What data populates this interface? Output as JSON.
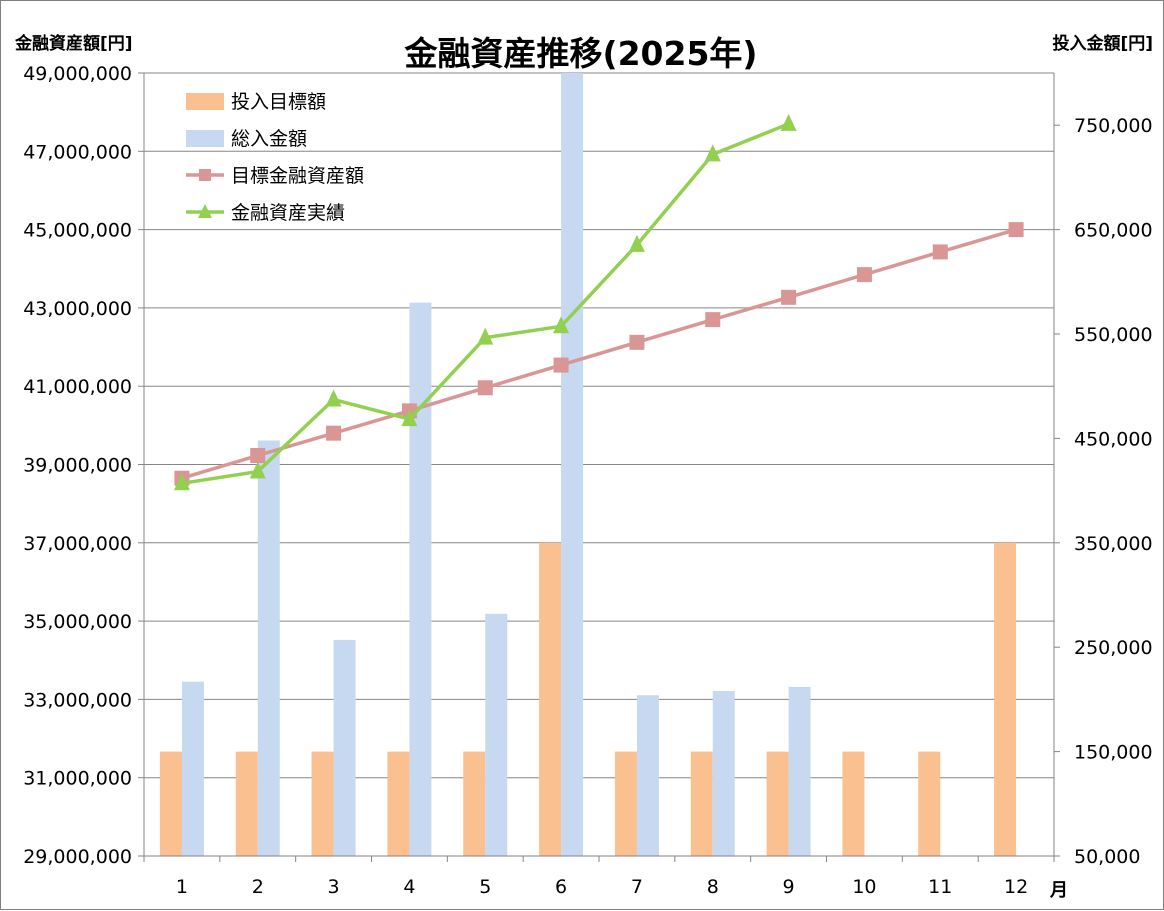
{
  "chart_data": {
    "type": "bar",
    "title": "金融資産推移(2025年)",
    "y_left_label": "金融資産額[円]",
    "y_right_label": "投入金額[円]",
    "x_unit_label": "月",
    "categories": [
      "1",
      "2",
      "3",
      "4",
      "5",
      "6",
      "7",
      "8",
      "9",
      "10",
      "11",
      "12"
    ],
    "y_left_range": [
      29000000,
      49000000
    ],
    "y_left_ticks": [
      "29,000,000",
      "31,000,000",
      "33,000,000",
      "35,000,000",
      "37,000,000",
      "39,000,000",
      "41,000,000",
      "43,000,000",
      "45,000,000",
      "47,000,000",
      "49,000,000"
    ],
    "y_right_range": [
      50000,
      800000
    ],
    "y_right_ticks": [
      "50,000",
      "150,000",
      "250,000",
      "350,000",
      "450,000",
      "550,000",
      "650,000",
      "750,000"
    ],
    "grid": true,
    "legend_position": "top-left",
    "bar_series": [
      {
        "name": "投入目標額",
        "axis": "right",
        "color": "#fac090",
        "values": [
          150000,
          150000,
          150000,
          150000,
          150000,
          350000,
          150000,
          150000,
          150000,
          150000,
          150000,
          350000
        ]
      },
      {
        "name": "総入金額",
        "axis": "right",
        "color": "#c6d9f1",
        "values": [
          217000,
          448000,
          257000,
          580000,
          282000,
          800000,
          204000,
          208000,
          212000,
          null,
          null,
          null
        ]
      }
    ],
    "line_series": [
      {
        "name": "目標金融資産額",
        "axis": "left",
        "color": "#d99694",
        "marker": "square",
        "values": [
          38650000,
          39230000,
          39800000,
          40370000,
          40960000,
          41540000,
          42120000,
          42700000,
          43270000,
          43850000,
          44430000,
          45000000
        ]
      },
      {
        "name": "金融資産実績",
        "axis": "left",
        "color": "#92d050",
        "marker": "triangle",
        "values": [
          38520000,
          38820000,
          40660000,
          40160000,
          42240000,
          42530000,
          44610000,
          46920000,
          47700000,
          null,
          null,
          null
        ]
      }
    ]
  }
}
